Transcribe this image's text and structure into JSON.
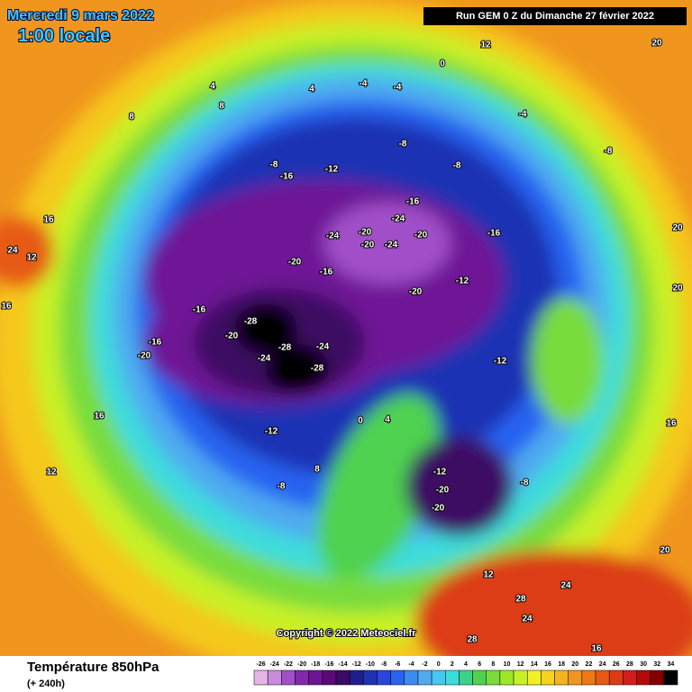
{
  "header": {
    "date": "Mercredi 9 mars 2022",
    "time": "1:00 locale",
    "run": "Run GEM 0 Z du Dimanche 27 février 2022"
  },
  "copyright": "Copyright © 2022 Meteociel.fr",
  "legend": {
    "title": "Température 850hPa",
    "lead_time": "(+ 240h)",
    "ticks": [
      -26,
      -24,
      -22,
      -20,
      -18,
      -16,
      -14,
      -12,
      -10,
      -8,
      -6,
      -4,
      -2,
      0,
      2,
      4,
      6,
      8,
      10,
      12,
      14,
      16,
      18,
      20,
      22,
      24,
      26,
      28,
      30,
      32,
      34
    ],
    "colors": [
      "#e6b4e6",
      "#c88cdc",
      "#a050c8",
      "#8228aa",
      "#6e1496",
      "#5a0a78",
      "#3c0a64",
      "#1e1e8c",
      "#1e32b4",
      "#2846dc",
      "#2864f0",
      "#3c8cf0",
      "#50aaf0",
      "#46c8f0",
      "#3cdcdc",
      "#3cd28c",
      "#50d250",
      "#78dc3c",
      "#a0e628",
      "#c8f028",
      "#f0f028",
      "#f5d21e",
      "#f5b41e",
      "#f0961e",
      "#f07814",
      "#e65a14",
      "#dc3c14",
      "#d21e1e",
      "#b40a0a",
      "#820000",
      "#000000"
    ]
  },
  "map": {
    "labels": [
      -28,
      -28,
      -28,
      -24,
      -24,
      -20,
      -20,
      -16,
      -16,
      -20,
      -16,
      -20,
      -24,
      -20,
      -24,
      -20,
      -16,
      -24,
      -16,
      -12,
      -20,
      -12,
      -8,
      -8,
      -12,
      -8,
      -16,
      -4,
      -4,
      0,
      12,
      20,
      -4,
      -8,
      -12,
      -20,
      -20,
      -8,
      -12,
      8,
      -8,
      4,
      0,
      12,
      24,
      28,
      24,
      20,
      16,
      24,
      12,
      16,
      16,
      12,
      8,
      8,
      4,
      4,
      16,
      20,
      20,
      16,
      28
    ]
  }
}
